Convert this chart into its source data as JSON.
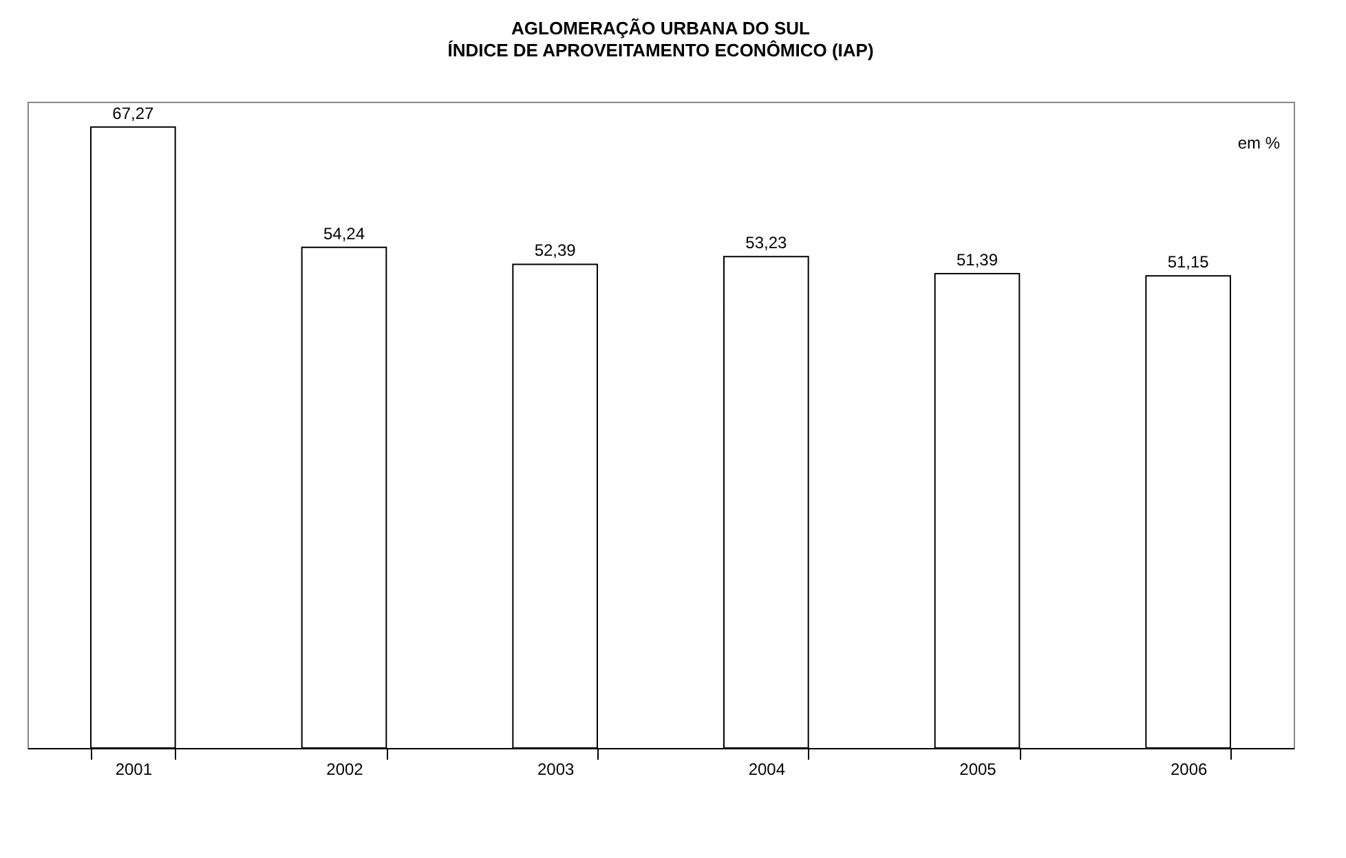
{
  "chart_data": {
    "type": "bar",
    "title": "AGLOMERAÇÃO URBANA DO SUL",
    "subtitle": "ÍNDICE DE APROVEITAMENTO ECONÔMICO (IAP)",
    "categories": [
      "2001",
      "2002",
      "2003",
      "2004",
      "2005",
      "2006"
    ],
    "values": [
      67.27,
      54.24,
      52.39,
      53.23,
      51.39,
      51.15
    ],
    "color": "#ffffff",
    "data_labels": true,
    "value_labels": [
      "67,27",
      "54,24",
      "52,39",
      "53,23",
      "51,39",
      "51,15"
    ],
    "annotations": [
      "em %"
    ],
    "grid": false
  }
}
